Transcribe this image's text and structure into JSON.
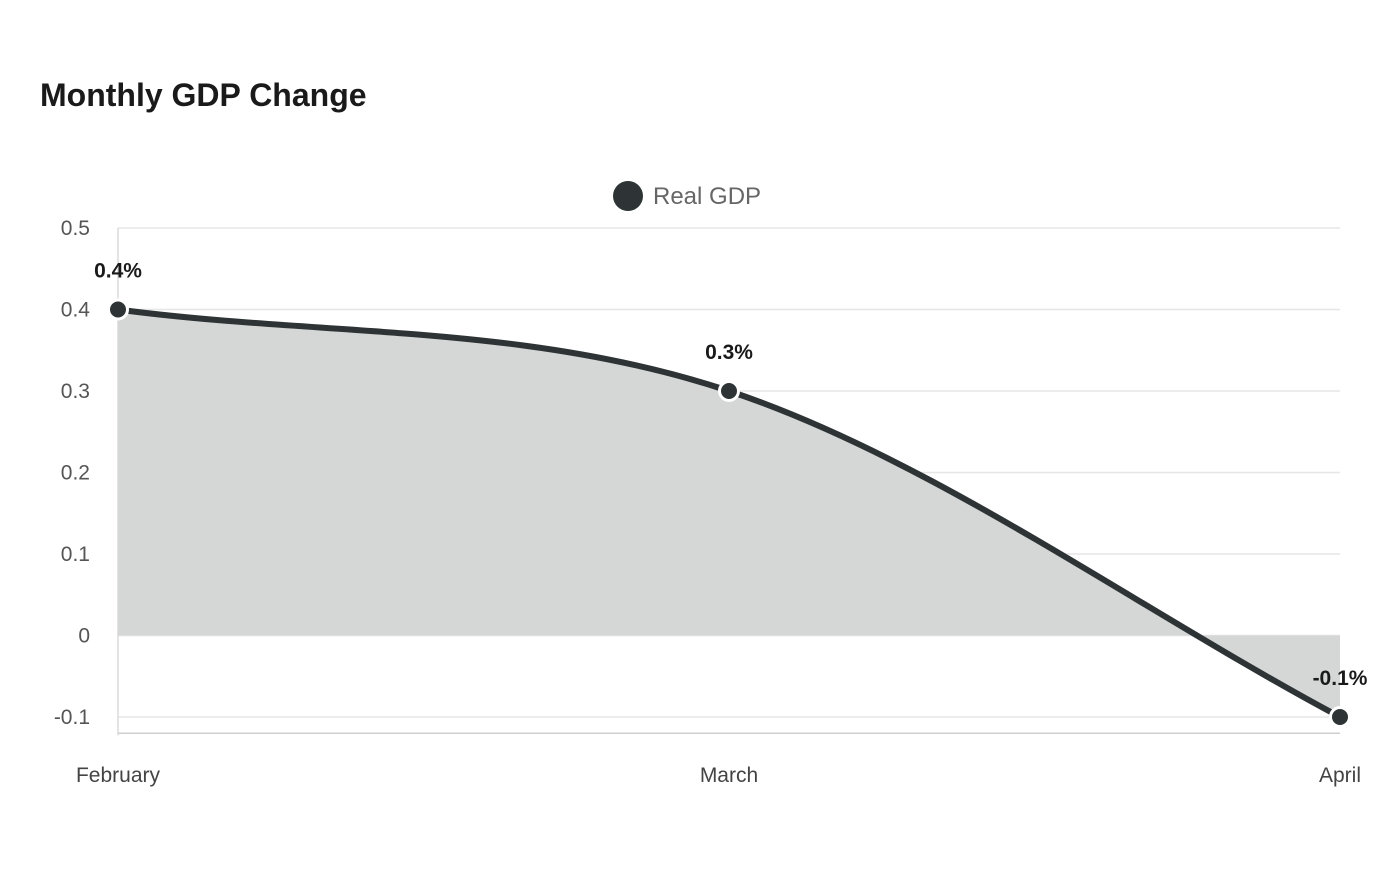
{
  "chart_data": {
    "type": "area",
    "title": "Monthly GDP Change",
    "categories": [
      "February",
      "March",
      "April"
    ],
    "series": [
      {
        "name": "Real GDP",
        "values": [
          0.4,
          0.3,
          -0.1
        ],
        "data_labels": [
          "0.4%",
          "0.3%",
          "-0.1%"
        ],
        "color": "#2e3436",
        "fill_color": "#d5d7d6"
      }
    ],
    "y_ticks": [
      "0.5",
      "0.4",
      "0.3",
      "0.2",
      "0.1",
      "0",
      "-0.1"
    ],
    "ylim": [
      -0.12,
      0.5
    ],
    "grid": true,
    "legend_position": "top-center"
  }
}
